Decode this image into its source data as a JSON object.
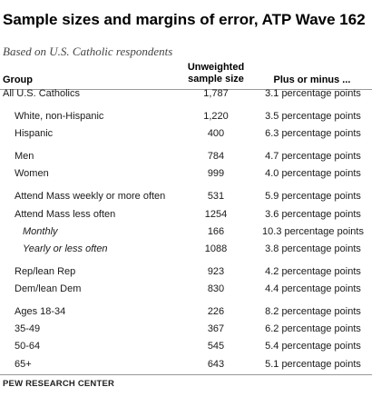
{
  "title": "Sample sizes and margins of error, ATP Wave 162",
  "subtitle": "Based on U.S. Catholic respondents",
  "columns": {
    "group": "Group",
    "sample_size_line1": "Unweighted",
    "sample_size_line2": "sample size",
    "moe": "Plus or minus ..."
  },
  "rows": [
    {
      "group": "All U.S. Catholics",
      "size": "1,787",
      "moe": "3.1 percentage points",
      "indent": 0
    },
    {
      "group": "White, non-Hispanic",
      "size": "1,220",
      "moe": "3.5 percentage points",
      "indent": 1
    },
    {
      "group": "Hispanic",
      "size": "400",
      "moe": "6.3 percentage points",
      "indent": 1
    },
    {
      "group": "Men",
      "size": "784",
      "moe": "4.7 percentage points",
      "indent": 1
    },
    {
      "group": "Women",
      "size": "999",
      "moe": "4.0 percentage points",
      "indent": 1
    },
    {
      "group": "Attend Mass weekly or more often",
      "size": "531",
      "moe": "5.9 percentage points",
      "indent": 1
    },
    {
      "group": "Attend Mass less often",
      "size": "1254",
      "moe": "3.6 percentage points",
      "indent": 1
    },
    {
      "group": "Monthly",
      "size": "166",
      "moe": "10.3 percentage points",
      "indent": 2
    },
    {
      "group": "Yearly or less often",
      "size": "1088",
      "moe": "3.8 percentage points",
      "indent": 2
    },
    {
      "group": "Rep/lean Rep",
      "size": "923",
      "moe": "4.2 percentage points",
      "indent": 1
    },
    {
      "group": "Dem/lean Dem",
      "size": "830",
      "moe": "4.4 percentage points",
      "indent": 1
    },
    {
      "group": "Ages 18-34",
      "size": "226",
      "moe": "8.2 percentage points",
      "indent": 1
    },
    {
      "group": "35-49",
      "size": "367",
      "moe": "6.2 percentage points",
      "indent": 1
    },
    {
      "group": "50-64",
      "size": "545",
      "moe": "5.4 percentage points",
      "indent": 1
    },
    {
      "group": "65+",
      "size": "643",
      "moe": "5.1 percentage points",
      "indent": 1
    }
  ],
  "source": "PEW RESEARCH CENTER"
}
